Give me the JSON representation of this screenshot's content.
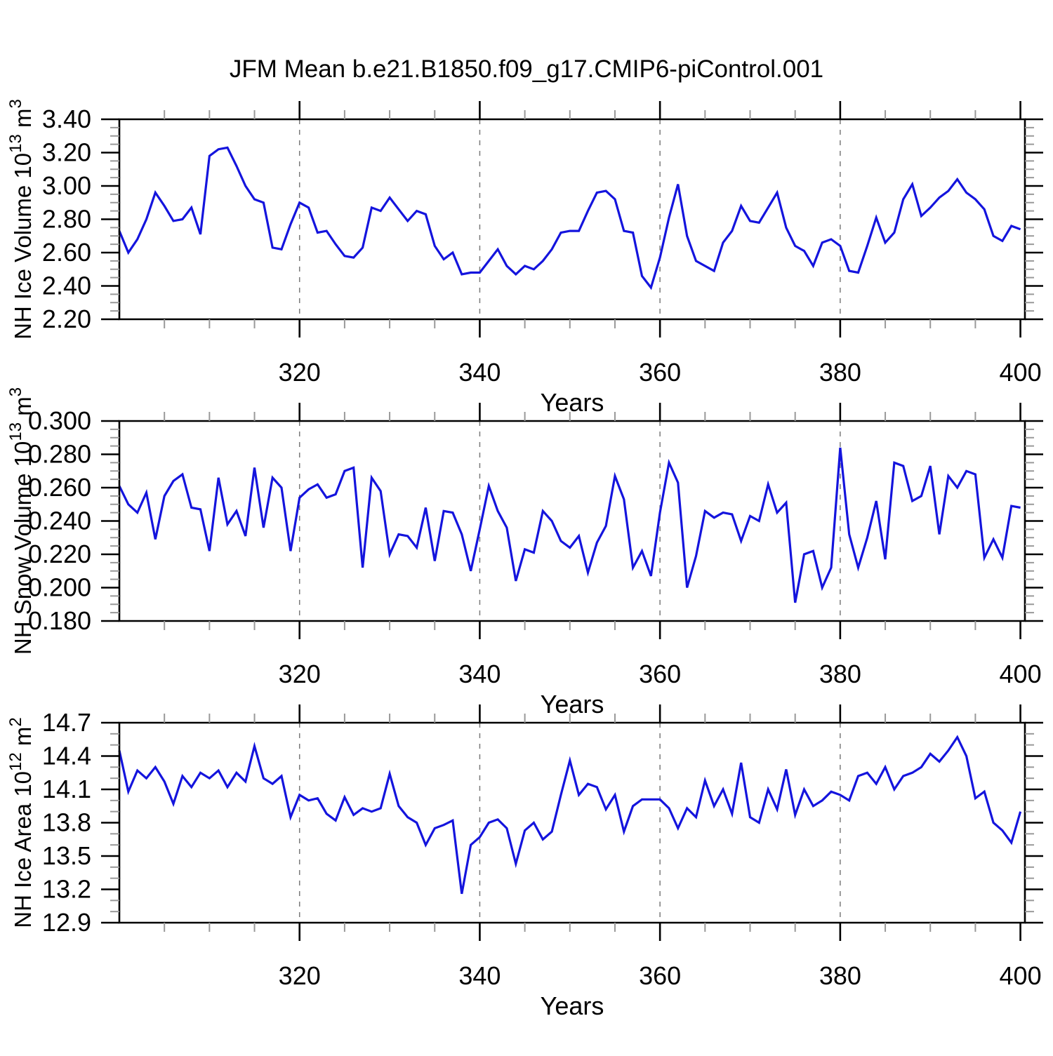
{
  "title": "JFM Mean b.e21.B1850.f09_g17.CMIP6-piControl.001",
  "line_color": "#1414dd",
  "background_color": "#ffffff",
  "gridline_color": "#7a7a7a",
  "minor_tick_color": "#999999",
  "axis_color": "#000000",
  "years": [
    300,
    301,
    302,
    303,
    304,
    305,
    306,
    307,
    308,
    309,
    310,
    311,
    312,
    313,
    314,
    315,
    316,
    317,
    318,
    319,
    320,
    321,
    322,
    323,
    324,
    325,
    326,
    327,
    328,
    329,
    330,
    331,
    332,
    333,
    334,
    335,
    336,
    337,
    338,
    339,
    340,
    341,
    342,
    343,
    344,
    345,
    346,
    347,
    348,
    349,
    350,
    351,
    352,
    353,
    354,
    355,
    356,
    357,
    358,
    359,
    360,
    361,
    362,
    363,
    364,
    365,
    366,
    367,
    368,
    369,
    370,
    371,
    372,
    373,
    374,
    375,
    376,
    377,
    378,
    379,
    380,
    381,
    382,
    383,
    384,
    385,
    386,
    387,
    388,
    389,
    390,
    391,
    392,
    393,
    394,
    395,
    396,
    397,
    398,
    399,
    400
  ],
  "chart_data": [
    {
      "type": "line",
      "name": "nh-ice-volume",
      "ylabel_text": "NH Ice Volume 10¹³ m³",
      "ylabel_segments": [
        {
          "t": "NH Ice Volume 10"
        },
        {
          "t": "13",
          "sup": true
        },
        {
          "t": " m"
        },
        {
          "t": "3",
          "sup": true
        }
      ],
      "xlabel": "Years",
      "ylim": [
        2.2,
        3.4
      ],
      "xlim": [
        300,
        400.5
      ],
      "y_major_ticks": [
        2.2,
        2.4,
        2.6,
        2.8,
        3.0,
        3.2,
        3.4
      ],
      "y_tick_labels": [
        "2.20",
        "2.40",
        "2.60",
        "2.80",
        "3.00",
        "3.20",
        "3.40"
      ],
      "y_minor_step": 0.05,
      "x_major_ticks": [
        320,
        340,
        360,
        380,
        400
      ],
      "x_tick_labels": [
        "320",
        "340",
        "360",
        "380",
        "400"
      ],
      "x_minor_step": 5,
      "x_gridlines": [
        320,
        340,
        360,
        380
      ],
      "grid": "dashed-vertical",
      "legend": "none",
      "values": [
        2.73,
        2.6,
        2.68,
        2.8,
        2.96,
        2.88,
        2.79,
        2.8,
        2.87,
        2.71,
        3.18,
        3.22,
        3.23,
        3.12,
        3.0,
        2.92,
        2.9,
        2.63,
        2.62,
        2.77,
        2.9,
        2.87,
        2.72,
        2.73,
        2.65,
        2.58,
        2.57,
        2.63,
        2.87,
        2.85,
        2.93,
        2.86,
        2.79,
        2.85,
        2.83,
        2.64,
        2.56,
        2.6,
        2.47,
        2.48,
        2.48,
        2.55,
        2.62,
        2.52,
        2.47,
        2.52,
        2.5,
        2.55,
        2.62,
        2.72,
        2.73,
        2.73,
        2.85,
        2.96,
        2.97,
        2.92,
        2.73,
        2.72,
        2.46,
        2.39,
        2.57,
        2.81,
        3.01,
        2.7,
        2.55,
        2.52,
        2.49,
        2.66,
        2.73,
        2.88,
        2.79,
        2.78,
        2.87,
        2.96,
        2.75,
        2.64,
        2.61,
        2.52,
        2.66,
        2.68,
        2.64,
        2.49,
        2.48,
        2.64,
        2.81,
        2.66,
        2.72,
        2.92,
        3.01,
        2.82,
        2.87,
        2.93,
        2.97,
        3.04,
        2.96,
        2.92,
        2.86,
        2.7,
        2.67,
        2.76,
        2.74
      ]
    },
    {
      "type": "line",
      "name": "nh-snow-volume",
      "ylabel_text": "NH Snow Volume 10¹³ m³",
      "ylabel_segments": [
        {
          "t": "NH Snow Volume 10"
        },
        {
          "t": "13",
          "sup": true
        },
        {
          "t": " m"
        },
        {
          "t": "3",
          "sup": true
        }
      ],
      "xlabel": "Years",
      "ylim": [
        0.18,
        0.3
      ],
      "xlim": [
        300,
        400.5
      ],
      "y_major_ticks": [
        0.18,
        0.2,
        0.22,
        0.24,
        0.26,
        0.28,
        0.3
      ],
      "y_tick_labels": [
        "0.180",
        "0.200",
        "0.220",
        "0.240",
        "0.260",
        "0.280",
        "0.300"
      ],
      "y_minor_step": 0.005,
      "x_major_ticks": [
        320,
        340,
        360,
        380,
        400
      ],
      "x_tick_labels": [
        "320",
        "340",
        "360",
        "380",
        "400"
      ],
      "x_minor_step": 5,
      "x_gridlines": [
        320,
        340,
        360,
        380
      ],
      "grid": "dashed-vertical",
      "legend": "none",
      "values": [
        0.261,
        0.25,
        0.245,
        0.257,
        0.229,
        0.255,
        0.264,
        0.268,
        0.248,
        0.247,
        0.222,
        0.266,
        0.238,
        0.246,
        0.231,
        0.272,
        0.236,
        0.266,
        0.26,
        0.222,
        0.254,
        0.259,
        0.262,
        0.254,
        0.256,
        0.27,
        0.272,
        0.212,
        0.266,
        0.258,
        0.22,
        0.232,
        0.231,
        0.224,
        0.248,
        0.216,
        0.246,
        0.245,
        0.232,
        0.21,
        0.235,
        0.261,
        0.246,
        0.236,
        0.204,
        0.223,
        0.221,
        0.246,
        0.24,
        0.228,
        0.224,
        0.231,
        0.209,
        0.227,
        0.237,
        0.267,
        0.253,
        0.212,
        0.222,
        0.207,
        0.245,
        0.275,
        0.263,
        0.2,
        0.219,
        0.246,
        0.242,
        0.245,
        0.244,
        0.228,
        0.243,
        0.24,
        0.262,
        0.245,
        0.251,
        0.191,
        0.22,
        0.222,
        0.2,
        0.212,
        0.284,
        0.232,
        0.212,
        0.23,
        0.252,
        0.217,
        0.275,
        0.273,
        0.252,
        0.255,
        0.273,
        0.232,
        0.267,
        0.26,
        0.27,
        0.268,
        0.218,
        0.229,
        0.218,
        0.249,
        0.248
      ]
    },
    {
      "type": "line",
      "name": "nh-ice-area",
      "ylabel_text": "NH Ice Area 10¹² m²",
      "ylabel_segments": [
        {
          "t": "NH Ice Area 10"
        },
        {
          "t": "12",
          "sup": true
        },
        {
          "t": " m"
        },
        {
          "t": "2",
          "sup": true
        }
      ],
      "xlabel": "Years",
      "ylim": [
        12.9,
        14.7
      ],
      "xlim": [
        300,
        400.5
      ],
      "y_major_ticks": [
        12.9,
        13.2,
        13.5,
        13.8,
        14.1,
        14.4,
        14.7
      ],
      "y_tick_labels": [
        "12.9",
        "13.2",
        "13.5",
        "13.8",
        "14.1",
        "14.4",
        "14.7"
      ],
      "y_minor_step": 0.1,
      "x_major_ticks": [
        320,
        340,
        360,
        380,
        400
      ],
      "x_tick_labels": [
        "320",
        "340",
        "360",
        "380",
        "400"
      ],
      "x_minor_step": 5,
      "x_gridlines": [
        320,
        340,
        360,
        380
      ],
      "grid": "dashed-vertical",
      "legend": "none",
      "values": [
        14.45,
        14.08,
        14.27,
        14.2,
        14.3,
        14.17,
        13.97,
        14.22,
        14.12,
        14.25,
        14.2,
        14.27,
        14.12,
        14.25,
        14.17,
        14.49,
        14.2,
        14.15,
        14.22,
        13.85,
        14.05,
        14.0,
        14.02,
        13.88,
        13.82,
        14.03,
        13.87,
        13.93,
        13.9,
        13.93,
        14.24,
        13.95,
        13.85,
        13.8,
        13.6,
        13.75,
        13.78,
        13.82,
        13.16,
        13.6,
        13.67,
        13.8,
        13.83,
        13.75,
        13.43,
        13.73,
        13.8,
        13.65,
        13.72,
        14.05,
        14.36,
        14.05,
        14.15,
        14.12,
        13.92,
        14.05,
        13.72,
        13.95,
        14.01,
        14.01,
        14.01,
        13.93,
        13.75,
        13.93,
        13.85,
        14.18,
        13.95,
        14.1,
        13.88,
        14.34,
        13.85,
        13.8,
        14.1,
        13.92,
        14.28,
        13.87,
        14.1,
        13.95,
        14.0,
        14.08,
        14.05,
        14.0,
        14.22,
        14.25,
        14.15,
        14.3,
        14.1,
        14.22,
        14.25,
        14.3,
        14.42,
        14.35,
        14.45,
        14.57,
        14.4,
        14.02,
        14.08,
        13.8,
        13.73,
        13.62,
        13.9
      ]
    }
  ]
}
